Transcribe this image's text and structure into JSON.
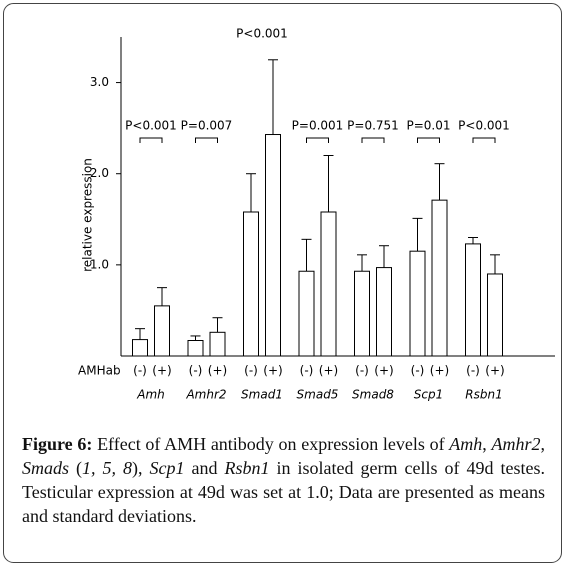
{
  "chart_data": {
    "type": "bar",
    "ylabel": "relative expression",
    "ylim": [
      0,
      3.5
    ],
    "yticks": [
      {
        "value": 1,
        "label": "1.0"
      },
      {
        "value": 2,
        "label": "2.0"
      },
      {
        "value": 3,
        "label": "3.0"
      }
    ],
    "condition_label": "AMHab",
    "categories": [
      "Amh",
      "Amhr2",
      "Smad1",
      "Smad5",
      "Smad8",
      "Scp1",
      "Rsbn1"
    ],
    "series": [
      {
        "name": "(-)",
        "color": "#ffffff",
        "values": [
          0.18,
          0.17,
          1.58,
          0.93,
          0.93,
          1.15,
          1.23
        ],
        "errors": [
          0.12,
          0.05,
          0.42,
          0.35,
          0.18,
          0.36,
          0.07
        ]
      },
      {
        "name": "(+)",
        "color": "#ffffff",
        "values": [
          0.55,
          0.26,
          2.43,
          1.58,
          0.97,
          1.71,
          0.9
        ],
        "errors": [
          0.2,
          0.16,
          0.82,
          0.62,
          0.24,
          0.4,
          0.21
        ]
      }
    ],
    "p_values": [
      "P<0.001",
      "P=0.007",
      "P<0.001",
      "P=0.001",
      "P=0.751",
      "P=0.01",
      "P<0.001"
    ]
  },
  "caption": {
    "label": "Figure 6:",
    "parts": [
      " Effect of AMH antibody on expression levels of ",
      "Amh",
      ", ",
      "Amhr2",
      ", ",
      "Smads",
      " (",
      "1, 5, 8",
      "), ",
      "Scp1",
      " and ",
      "Rsbn1",
      " in isolated germ cells of 49d testes. Testicular expression at 49d was set at 1.0; Data are presented as means and standard deviations."
    ]
  }
}
